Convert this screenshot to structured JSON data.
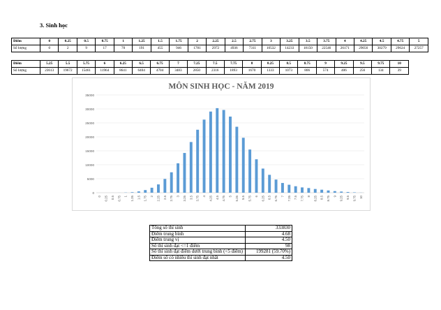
{
  "section_title": "3.  Sinh học",
  "score_table": {
    "row_label_score": "Điểm",
    "row_label_count": "Số lượng",
    "part1_scores": [
      "0",
      "0.25",
      "0.5",
      "0.75",
      "1",
      "1.25",
      "1.5",
      "1.75",
      "2",
      "2.25",
      "2.5",
      "2.75",
      "3",
      "3.25",
      "3.5",
      "3.75",
      "4",
      "4.25",
      "4.5",
      "4.75",
      "5"
    ],
    "part1_counts": [
      "0",
      "2",
      "9",
      "17",
      "70",
      "191",
      "455",
      "946",
      "1781",
      "2972",
      "4936",
      "7311",
      "10532",
      "14233",
      "18150",
      "22546",
      "26171",
      "29056",
      "30279",
      "29624",
      "27257"
    ],
    "part2_scores": [
      "5.25",
      "5.5",
      "5.75",
      "6",
      "6.25",
      "6.5",
      "6.75",
      "7",
      "7.25",
      "7.5",
      "7.75",
      "8",
      "8.25",
      "8.5",
      "8.75",
      "9",
      "9.25",
      "9.5",
      "9.75",
      "10"
    ],
    "part2_counts": [
      "23613",
      "19672",
      "15461",
      "11964",
      "8641",
      "6404",
      "4704",
      "3483",
      "2850",
      "2316",
      "1893",
      "1670",
      "1333",
      "1073",
      "806",
      "574",
      "406",
      "256",
      "134",
      "39"
    ]
  },
  "chart_data": {
    "type": "bar",
    "title": "MÔN SINH HỌC - NĂM 2019",
    "xlabel": "",
    "ylabel": "",
    "ylim": [
      0,
      35000
    ],
    "yticks": [
      "0",
      "5000",
      "10000",
      "15000",
      "20000",
      "25000",
      "30000",
      "35000"
    ],
    "categories": [
      "0",
      "0.25",
      "0.5",
      "0.75",
      "1",
      "1.25",
      "1.5",
      "1.75",
      "2",
      "2.25",
      "2.5",
      "2.75",
      "3",
      "3.25",
      "3.5",
      "3.75",
      "4",
      "4.25",
      "4.5",
      "4.75",
      "5",
      "5.25",
      "5.5",
      "5.75",
      "6",
      "6.25",
      "6.5",
      "6.75",
      "7",
      "7.25",
      "7.5",
      "7.75",
      "8",
      "8.25",
      "8.5",
      "8.75",
      "9",
      "9.25",
      "9.5",
      "9.75",
      "10"
    ],
    "values": [
      0,
      2,
      9,
      17,
      70,
      191,
      455,
      946,
      1781,
      2972,
      4936,
      7311,
      10532,
      14233,
      18150,
      22546,
      26171,
      29056,
      30279,
      29624,
      27257,
      23613,
      19672,
      15461,
      11964,
      8641,
      6404,
      4704,
      3483,
      2850,
      2316,
      1893,
      1670,
      1333,
      1073,
      806,
      574,
      406,
      256,
      134,
      39
    ],
    "grid": true,
    "bar_color": "#5b9bd5"
  },
  "stats": [
    {
      "label": "Tổng số thí sinh",
      "value": "333830"
    },
    {
      "label": "Điểm trung bình",
      "value": "4.68"
    },
    {
      "label": "Điểm trung vị",
      "value": "4.50"
    },
    {
      "label": "Số thí sinh đạt <=1 điểm",
      "value": "98"
    },
    {
      "label": "Số thí sinh đạt điểm dưới trung bình (<5 điểm)",
      "value": "199281 (59.70%)"
    },
    {
      "label": "Điểm số có nhiều thí sinh đạt nhất",
      "value": "4.50"
    }
  ]
}
